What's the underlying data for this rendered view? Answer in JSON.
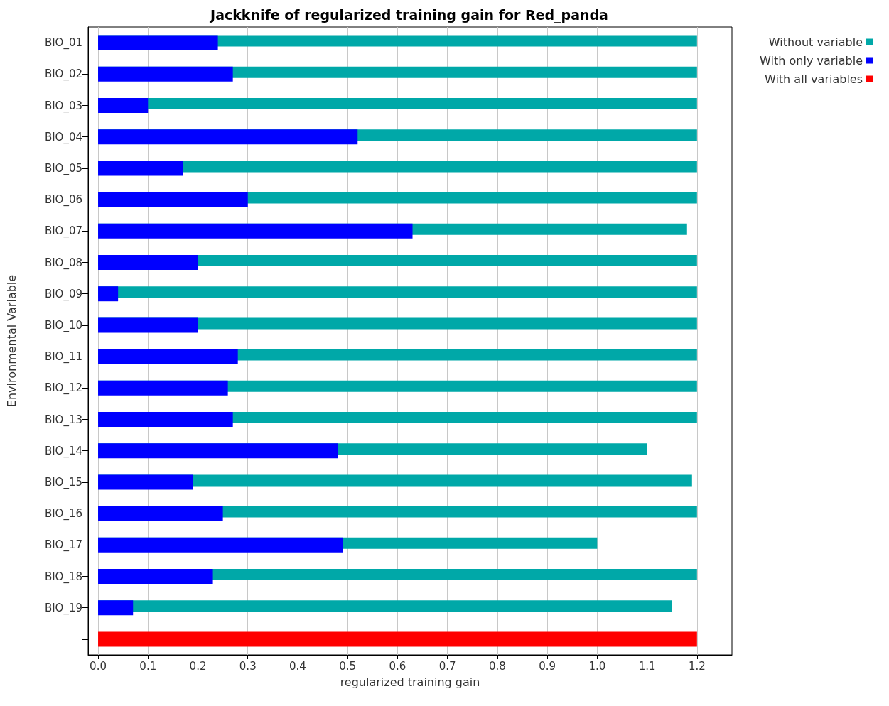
{
  "chart_data": {
    "type": "bar",
    "orientation": "horizontal",
    "title": "Jackknife of regularized training gain for Red_panda",
    "xlabel": "regularized training gain",
    "ylabel": "Environmental Variable",
    "categories": [
      "BIO_01",
      "BIO_02",
      "BIO_03",
      "BIO_04",
      "BIO_05",
      "BIO_06",
      "BIO_07",
      "BIO_08",
      "BIO_09",
      "BIO_10",
      "BIO_11",
      "BIO_12",
      "BIO_13",
      "BIO_14",
      "BIO_15",
      "BIO_16",
      "BIO_17",
      "BIO_18",
      "BIO_19",
      null
    ],
    "series": [
      {
        "name": "Without variable",
        "color": "#00a8a8",
        "values": [
          1.2,
          1.2,
          1.2,
          1.2,
          1.2,
          1.2,
          1.18,
          1.2,
          1.2,
          1.2,
          1.2,
          1.2,
          1.2,
          1.1,
          1.19,
          1.2,
          1.0,
          1.2,
          1.15,
          null
        ]
      },
      {
        "name": "With only variable",
        "color": "#0000ff",
        "values": [
          0.24,
          0.27,
          0.1,
          0.52,
          0.17,
          0.3,
          0.63,
          0.2,
          0.04,
          0.2,
          0.28,
          0.26,
          0.27,
          0.48,
          0.19,
          0.25,
          0.49,
          0.23,
          0.07,
          null
        ]
      },
      {
        "name": "With all variables",
        "color": "#ff0000",
        "values": [
          null,
          null,
          null,
          null,
          null,
          null,
          null,
          null,
          null,
          null,
          null,
          null,
          null,
          null,
          null,
          null,
          null,
          null,
          null,
          1.2
        ]
      }
    ],
    "xlim": [
      -0.02,
      1.27
    ],
    "xticks": [
      {
        "value": 0,
        "label": "0.0"
      },
      {
        "value": 0.1,
        "label": "0.1"
      },
      {
        "value": 0.2,
        "label": "0.2"
      },
      {
        "value": 0.3,
        "label": "0.3"
      },
      {
        "value": 0.4,
        "label": "0.4"
      },
      {
        "value": 0.5,
        "label": "0.5"
      },
      {
        "value": 0.6,
        "label": "0.6"
      },
      {
        "value": 0.7,
        "label": "0.7"
      },
      {
        "value": 0.8,
        "label": "0.8"
      },
      {
        "value": 0.9,
        "label": "0.9"
      },
      {
        "value": 1,
        "label": "1.0"
      },
      {
        "value": 1.1,
        "label": "1.1"
      },
      {
        "value": 1.2,
        "label": "1.2"
      }
    ],
    "grid": "x",
    "legend": "top right"
  }
}
